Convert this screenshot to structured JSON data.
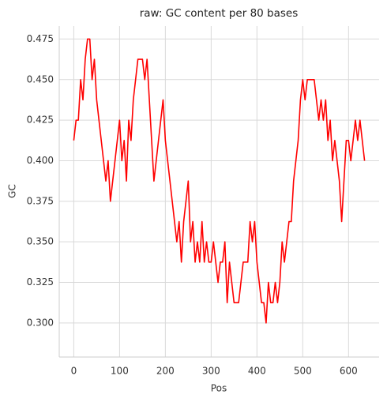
{
  "chart_data": {
    "type": "line",
    "title": "raw: GC content per 80 bases",
    "xlabel": "Pos",
    "ylabel": "GC",
    "x": [
      0,
      5,
      10,
      15,
      20,
      25,
      30,
      35,
      40,
      45,
      50,
      55,
      60,
      65,
      70,
      75,
      80,
      85,
      90,
      95,
      100,
      105,
      110,
      115,
      120,
      125,
      130,
      135,
      140,
      145,
      150,
      155,
      160,
      165,
      170,
      175,
      180,
      185,
      190,
      195,
      200,
      205,
      210,
      215,
      220,
      225,
      230,
      235,
      240,
      245,
      250,
      255,
      260,
      265,
      270,
      275,
      280,
      285,
      290,
      295,
      300,
      305,
      310,
      315,
      320,
      325,
      330,
      335,
      340,
      345,
      350,
      355,
      360,
      365,
      370,
      375,
      380,
      385,
      390,
      395,
      400,
      405,
      410,
      415,
      420,
      425,
      430,
      435,
      440,
      445,
      450,
      455,
      460,
      465,
      470,
      475,
      480,
      485,
      490,
      495,
      500,
      505,
      510,
      515,
      520,
      525,
      530,
      535,
      540,
      545,
      550,
      555,
      560,
      565,
      570,
      575,
      580,
      585,
      590,
      595,
      600,
      605,
      610,
      615,
      620,
      625,
      630,
      635
    ],
    "series": [
      {
        "name": "GC",
        "color": "#ff0000",
        "values": [
          0.4125,
          0.425,
          0.425,
          0.45,
          0.4375,
          0.4625,
          0.475,
          0.475,
          0.45,
          0.4625,
          0.4375,
          0.425,
          0.4125,
          0.4,
          0.3875,
          0.4,
          0.375,
          0.3875,
          0.4,
          0.4125,
          0.425,
          0.4,
          0.4125,
          0.3875,
          0.425,
          0.4125,
          0.4375,
          0.45,
          0.4625,
          0.4625,
          0.4625,
          0.45,
          0.4625,
          0.4375,
          0.4125,
          0.3875,
          0.4,
          0.4125,
          0.425,
          0.4375,
          0.4125,
          0.4,
          0.3875,
          0.375,
          0.3625,
          0.35,
          0.3625,
          0.3375,
          0.3625,
          0.375,
          0.3875,
          0.35,
          0.3625,
          0.3375,
          0.35,
          0.3375,
          0.3625,
          0.3375,
          0.35,
          0.3375,
          0.3375,
          0.35,
          0.3375,
          0.325,
          0.3375,
          0.3375,
          0.35,
          0.3125,
          0.3375,
          0.325,
          0.3125,
          0.3125,
          0.3125,
          0.325,
          0.3375,
          0.3375,
          0.3375,
          0.3625,
          0.35,
          0.3625,
          0.3375,
          0.325,
          0.3125,
          0.3125,
          0.3,
          0.325,
          0.3125,
          0.3125,
          0.325,
          0.3125,
          0.325,
          0.35,
          0.3375,
          0.35,
          0.3625,
          0.3625,
          0.3875,
          0.4,
          0.4125,
          0.4375,
          0.45,
          0.4375,
          0.45,
          0.45,
          0.45,
          0.45,
          0.4375,
          0.425,
          0.4375,
          0.425,
          0.4375,
          0.4125,
          0.425,
          0.4,
          0.4125,
          0.4,
          0.3875,
          0.3625,
          0.3875,
          0.4125,
          0.4125,
          0.4,
          0.4125,
          0.425,
          0.4125,
          0.425,
          0.4125,
          0.4
        ]
      }
    ],
    "xlim": [
      -31.75,
      666.75
    ],
    "xticks": [
      0,
      100,
      200,
      300,
      400,
      500,
      600
    ],
    "ylim": [
      0.279,
      0.483
    ],
    "yticks": [
      {
        "value": 0.3,
        "label": "0.300"
      },
      0.325,
      {
        "value": 0.35,
        "label": "0.350"
      },
      0.375,
      {
        "value": 0.4,
        "label": "0.400"
      },
      0.425,
      {
        "value": 0.45,
        "label": "0.450"
      },
      0.475
    ],
    "grid": true
  }
}
